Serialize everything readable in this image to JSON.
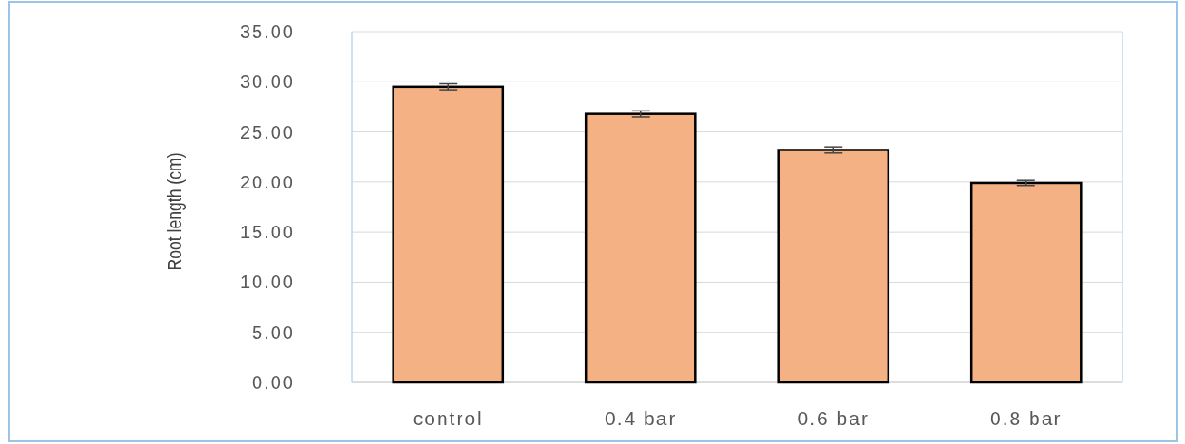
{
  "chart_data": {
    "type": "bar",
    "ylabel": "Root length (cm)",
    "categories": [
      "control",
      "0.4 bar",
      "0.6 bar",
      "0.8 bar"
    ],
    "values": [
      29.5,
      26.8,
      23.2,
      19.9
    ],
    "errors": [
      0.3,
      0.3,
      0.3,
      0.25
    ],
    "color": "#f4b183",
    "ylim": [
      0,
      35
    ],
    "yticks": [
      {
        "value": 0,
        "label": "0.00"
      },
      {
        "value": 5,
        "label": "5.00"
      },
      {
        "value": 10,
        "label": "10.00"
      },
      {
        "value": 15,
        "label": "15.00"
      },
      {
        "value": 20,
        "label": "20.00"
      },
      {
        "value": 25,
        "label": "25.00"
      },
      {
        "value": 30,
        "label": "30.00"
      },
      {
        "value": 35,
        "label": "35.00"
      }
    ],
    "grid": "y"
  }
}
